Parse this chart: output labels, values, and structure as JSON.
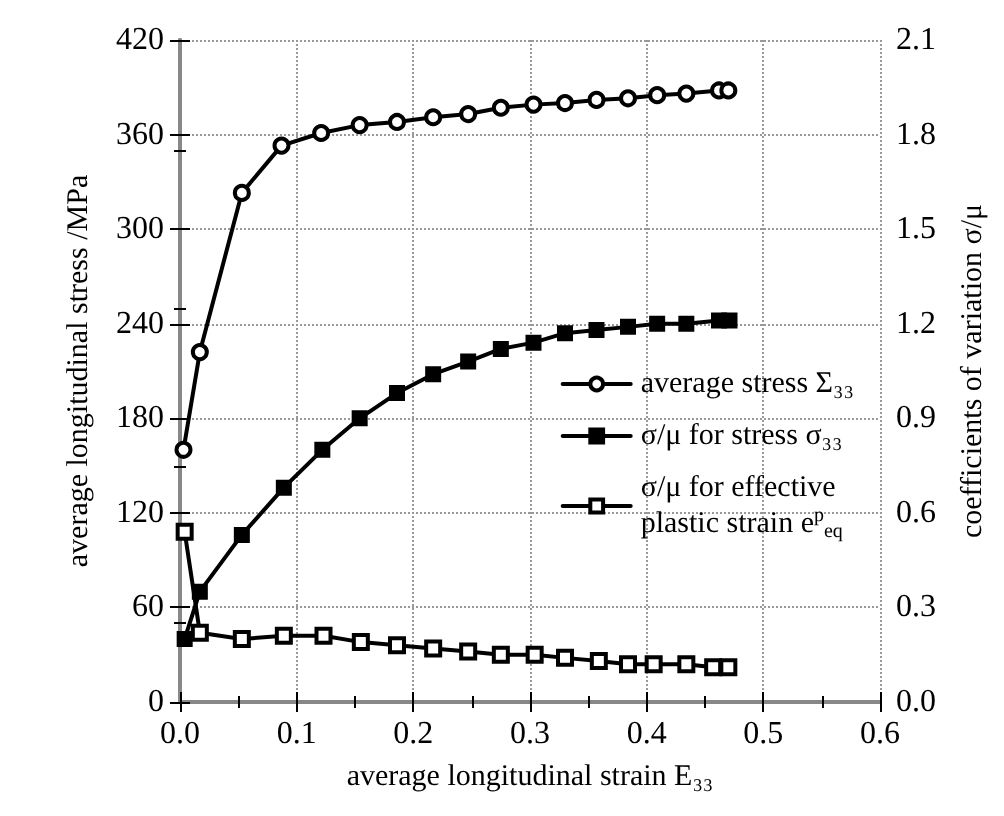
{
  "chart_data": {
    "type": "line",
    "xlabel": "average longitudinal strain E₃₃",
    "ylabel": "average longitudinal stress /MPa",
    "y2label": "coefficients of variation σ/μ",
    "xlim": [
      0,
      0.6
    ],
    "xticks": [
      {
        "value": 0,
        "label": "0.0"
      },
      0.1,
      0.2,
      0.3,
      0.4,
      0.5,
      0.6
    ],
    "ylim": [
      0,
      420
    ],
    "yticks": [
      0,
      60,
      120,
      180,
      240,
      300,
      360,
      420
    ],
    "y2lim": [
      0,
      2.1
    ],
    "y2ticks": [
      {
        "value": 0,
        "label": "0.0"
      },
      0.3,
      0.6,
      0.9,
      1.2,
      1.5,
      1.8,
      2.1
    ],
    "grid": true,
    "legend": "right",
    "line_style": "solid",
    "series": [
      {
        "name": "average stress Σ₃₃",
        "color": "#000000",
        "marker": "circle",
        "x": [
          0.003,
          0.017,
          0.053,
          0.087,
          0.121,
          0.154,
          0.186,
          0.217,
          0.247,
          0.275,
          0.303,
          0.33,
          0.357,
          0.384,
          0.409,
          0.434,
          0.462,
          0.47
        ],
        "values": [
          160,
          222,
          323,
          353,
          361,
          366,
          368,
          371,
          373,
          377,
          379,
          380,
          382,
          383,
          385,
          386,
          388,
          388
        ]
      },
      {
        "name": "σ/μ for stress σ₃₃",
        "color": "#000000",
        "marker": "square",
        "axis": "y2",
        "x": [
          0.004,
          0.017,
          0.053,
          0.089,
          0.122,
          0.154,
          0.186,
          0.217,
          0.247,
          0.275,
          0.303,
          0.33,
          0.357,
          0.384,
          0.409,
          0.434,
          0.462,
          0.471
        ],
        "values": [
          0.2,
          0.35,
          0.53,
          0.68,
          0.8,
          0.9,
          0.98,
          1.04,
          1.08,
          1.12,
          1.14,
          1.17,
          1.18,
          1.19,
          1.2,
          1.2,
          1.21,
          1.21
        ]
      },
      {
        "name": "σ/μ for effective plastic strain e$^{p}$$_{eq}$",
        "color": "#000000",
        "marker": "square",
        "axis": "y2",
        "x": [
          0.004,
          0.017,
          0.053,
          0.089,
          0.123,
          0.155,
          0.186,
          0.217,
          0.247,
          0.275,
          0.304,
          0.33,
          0.359,
          0.384,
          0.406,
          0.434,
          0.457,
          0.47
        ],
        "values": [
          0.54,
          0.22,
          0.2,
          0.21,
          0.21,
          0.19,
          0.18,
          0.17,
          0.16,
          0.15,
          0.15,
          0.14,
          0.13,
          0.12,
          0.12,
          0.12,
          0.11,
          0.11
        ]
      }
    ]
  }
}
